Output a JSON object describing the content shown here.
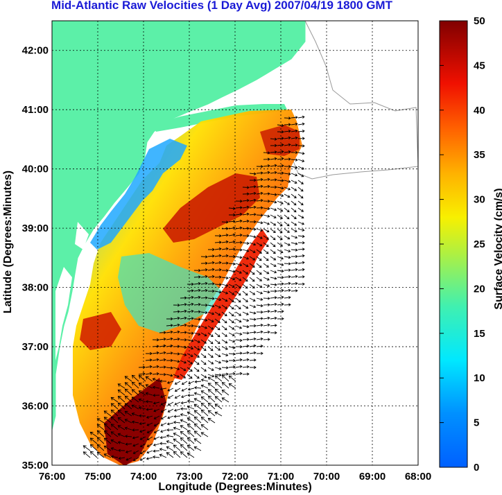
{
  "title": "Mid-Atlantic Raw Velocities (1 Day Avg) 2007/04/19 1800 GMT",
  "x_axis": {
    "label": "Longitude (Degrees:Minutes)",
    "ticks": [
      "76:00",
      "75:00",
      "74:00",
      "73:00",
      "72:00",
      "71:00",
      "70:00",
      "69:00",
      "68:00"
    ]
  },
  "y_axis": {
    "label": "Latitude (Degrees:Minutes)",
    "ticks": [
      "35:00",
      "36:00",
      "37:00",
      "38:00",
      "39:00",
      "40:00",
      "41:00",
      "42:00"
    ]
  },
  "colorbar": {
    "label": "Surface Velocity (cm/s)",
    "ticks": [
      "0",
      "5",
      "10",
      "15",
      "20",
      "25",
      "30",
      "35",
      "40",
      "45",
      "50"
    ],
    "range": [
      0,
      50
    ],
    "colormap": "jet"
  },
  "map": {
    "lon_range": [
      -76,
      -68
    ],
    "lat_range": [
      35,
      42.5
    ],
    "land_color": "#5cf0a8",
    "coast_outline_color": "#999999",
    "grid": true,
    "vector_color": "#000000"
  }
}
